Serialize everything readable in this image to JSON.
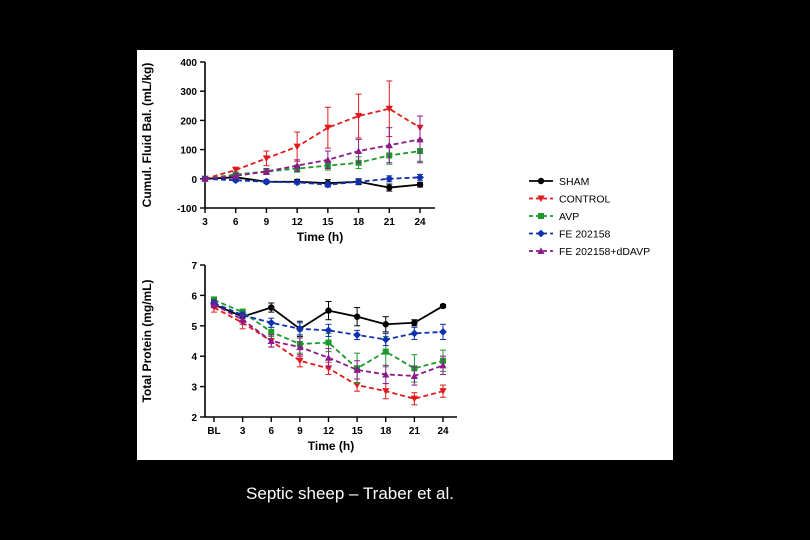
{
  "caption": "Septic sheep – Traber et al.",
  "chart_data": [
    {
      "type": "line",
      "xlabel": "Time (h)",
      "ylabel": "Cumul. Fluid Bal. (mL/kg)",
      "categories": [
        "3",
        "6",
        "9",
        "12",
        "15",
        "18",
        "21",
        "24"
      ],
      "ylim": [
        -100,
        400
      ],
      "yticks": [
        -100,
        0,
        100,
        200,
        300,
        400
      ],
      "grid": false,
      "legend_position": "right",
      "series": [
        {
          "name": "SHAM",
          "color": "#000000",
          "marker": "circle",
          "values": [
            0,
            5,
            -10,
            -10,
            -15,
            -10,
            -30,
            -20
          ],
          "err": [
            5,
            5,
            5,
            8,
            12,
            10,
            12,
            8
          ]
        },
        {
          "name": "CONTROL",
          "color": "#e31a1c",
          "marker": "triangle-down",
          "values": [
            0,
            30,
            70,
            110,
            175,
            215,
            240,
            175
          ],
          "err": [
            5,
            10,
            25,
            50,
            70,
            75,
            95,
            40
          ]
        },
        {
          "name": "AVP",
          "color": "#1a9a2a",
          "marker": "square",
          "values": [
            0,
            15,
            25,
            35,
            45,
            55,
            80,
            95
          ],
          "err": [
            5,
            5,
            10,
            12,
            15,
            20,
            30,
            35
          ]
        },
        {
          "name": "FE 202158",
          "color": "#1030b0",
          "marker": "diamond",
          "values": [
            0,
            -5,
            -10,
            -12,
            -20,
            -10,
            0,
            5
          ],
          "err": [
            5,
            5,
            5,
            5,
            8,
            8,
            10,
            10
          ]
        },
        {
          "name": "FE 202158+dDAVP",
          "color": "#8b1a8b",
          "marker": "triangle-up",
          "values": [
            0,
            10,
            25,
            45,
            65,
            95,
            115,
            135
          ],
          "err": [
            5,
            8,
            10,
            20,
            30,
            40,
            60,
            80
          ]
        }
      ]
    },
    {
      "type": "line",
      "xlabel": "Time (h)",
      "ylabel": "Total Protein (mg/mL)",
      "categories": [
        "BL",
        "3",
        "6",
        "9",
        "12",
        "15",
        "18",
        "21",
        "24"
      ],
      "ylim": [
        2,
        7
      ],
      "yticks": [
        2,
        3,
        4,
        5,
        6,
        7
      ],
      "grid": false,
      "series": [
        {
          "name": "SHAM",
          "color": "#000000",
          "marker": "circle",
          "values": [
            5.7,
            5.3,
            5.6,
            4.9,
            5.5,
            5.3,
            5.05,
            5.1,
            5.65
          ],
          "err": [
            0.1,
            0.15,
            0.15,
            0.25,
            0.3,
            0.3,
            0.25,
            0.1,
            0.05
          ]
        },
        {
          "name": "CONTROL",
          "color": "#e31a1c",
          "marker": "triangle-down",
          "values": [
            5.6,
            5.1,
            4.5,
            3.85,
            3.6,
            3.05,
            2.85,
            2.6,
            2.85
          ],
          "err": [
            0.15,
            0.2,
            0.2,
            0.2,
            0.2,
            0.2,
            0.25,
            0.2,
            0.2
          ]
        },
        {
          "name": "AVP",
          "color": "#1a9a2a",
          "marker": "square",
          "values": [
            5.85,
            5.45,
            4.8,
            4.4,
            4.45,
            3.6,
            4.15,
            3.6,
            3.85
          ],
          "err": [
            0.1,
            0.1,
            0.15,
            0.3,
            0.3,
            0.5,
            0.5,
            0.45,
            0.35
          ]
        },
        {
          "name": "FE 202158",
          "color": "#1030b0",
          "marker": "diamond",
          "values": [
            5.75,
            5.35,
            5.1,
            4.9,
            4.85,
            4.7,
            4.55,
            4.75,
            4.8
          ],
          "err": [
            0.1,
            0.1,
            0.15,
            0.2,
            0.2,
            0.15,
            0.2,
            0.2,
            0.25
          ]
        },
        {
          "name": "FE 202158+dDAVP",
          "color": "#8b1a8b",
          "marker": "triangle-up",
          "values": [
            5.7,
            5.2,
            4.5,
            4.3,
            3.95,
            3.55,
            3.4,
            3.35,
            3.7
          ],
          "err": [
            0.1,
            0.15,
            0.2,
            0.3,
            0.3,
            0.3,
            0.3,
            0.3,
            0.3
          ]
        }
      ]
    }
  ]
}
